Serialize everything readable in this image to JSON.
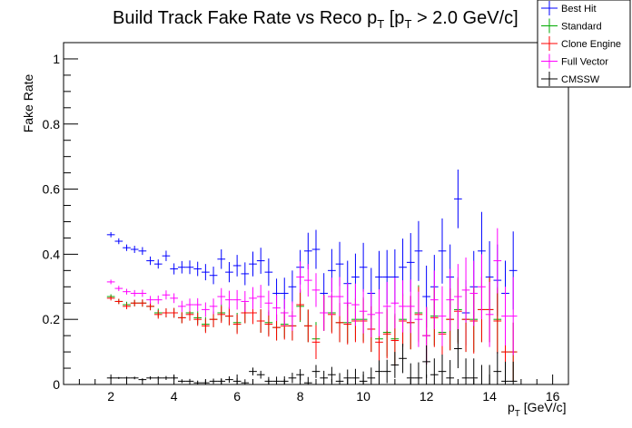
{
  "chart_data": {
    "type": "scatter",
    "title": "Build Track Fake Rate vs Reco p",
    "title_sub": "T",
    "title_rest1": " [p",
    "title_sub2": "T",
    "title_rest2": " > 2.0 GeV/c]",
    "xlabel": "p",
    "xlabel_sub": "T",
    "xlabel_unit": " [GeV/c]",
    "ylabel": "Fake Rate",
    "xlim": [
      0.5,
      16.5
    ],
    "ylim": [
      0,
      1.05
    ],
    "x_ticks": [
      2,
      4,
      6,
      8,
      10,
      12,
      14,
      16
    ],
    "y_ticks": [
      0,
      0.2,
      0.4,
      0.6,
      0.8,
      1
    ],
    "x_tick_labels": [
      "2",
      "4",
      "6",
      "8",
      "10",
      "12",
      "14",
      "16"
    ],
    "y_tick_labels": [
      "0",
      "0.2",
      "0.4",
      "0.6",
      "0.8",
      "1"
    ],
    "bin_width": 0.25,
    "x": [
      2.0,
      2.25,
      2.5,
      2.75,
      3.0,
      3.25,
      3.5,
      3.75,
      4.0,
      4.25,
      4.5,
      4.75,
      5.0,
      5.25,
      5.5,
      5.75,
      6.0,
      6.25,
      6.5,
      6.75,
      7.0,
      7.25,
      7.5,
      7.75,
      8.0,
      8.25,
      8.5,
      8.75,
      9.0,
      9.25,
      9.5,
      9.75,
      10.0,
      10.25,
      10.5,
      10.75,
      11.0,
      11.25,
      11.5,
      11.75,
      12.0,
      12.25,
      12.5,
      12.75,
      13.0,
      13.25,
      13.5,
      13.75,
      14.0,
      14.25,
      14.5,
      14.75
    ],
    "legend_position": "top-right",
    "series": [
      {
        "name": "Best Hit",
        "color": "#0000ff",
        "values": [
          0.46,
          0.44,
          0.42,
          0.415,
          0.41,
          0.38,
          0.37,
          0.395,
          0.355,
          0.36,
          0.36,
          0.355,
          0.345,
          0.335,
          0.385,
          0.345,
          0.365,
          0.34,
          0.37,
          0.38,
          0.345,
          0.28,
          0.28,
          0.3,
          0.36,
          0.41,
          0.415,
          0.28,
          0.35,
          0.37,
          0.31,
          0.33,
          0.36,
          0.28,
          0.33,
          0.33,
          0.33,
          0.36,
          0.375,
          0.41,
          0.27,
          0.3,
          0.41,
          0.33,
          0.57,
          0.22,
          0.3,
          0.41,
          0.33,
          0.32,
          0.28,
          0.35
        ],
        "errors": [
          0.008,
          0.009,
          0.01,
          0.011,
          0.012,
          0.013,
          0.014,
          0.016,
          0.017,
          0.019,
          0.021,
          0.022,
          0.025,
          0.027,
          0.03,
          0.031,
          0.033,
          0.035,
          0.038,
          0.04,
          0.042,
          0.045,
          0.048,
          0.05,
          0.053,
          0.056,
          0.06,
          0.062,
          0.066,
          0.068,
          0.07,
          0.072,
          0.075,
          0.078,
          0.08,
          0.083,
          0.085,
          0.088,
          0.09,
          0.092,
          0.095,
          0.098,
          0.1,
          0.1,
          0.09,
          0.1,
          0.11,
          0.12,
          0.11,
          0.11,
          0.1,
          0.12
        ]
      },
      {
        "name": "Standard",
        "color": "#00aa00",
        "values": [
          0.27,
          0.255,
          0.245,
          0.25,
          0.25,
          0.24,
          0.22,
          0.22,
          0.22,
          0.205,
          0.22,
          0.205,
          0.185,
          0.2,
          0.22,
          0.21,
          0.19,
          0.22,
          0.22,
          0.195,
          0.19,
          0.175,
          0.185,
          0.18,
          0.24,
          0.18,
          0.14,
          0.22,
          0.22,
          0.19,
          0.19,
          0.2,
          0.2,
          0.17,
          0.14,
          0.16,
          0.14,
          0.2,
          0.19,
          0.22,
          0.15,
          0.21,
          0.16,
          0.2,
          0.23,
          0.2,
          0.2,
          0.23,
          0.23,
          0.2,
          0.1,
          0.1
        ],
        "errors": [
          0.007,
          0.008,
          0.009,
          0.01,
          0.011,
          0.012,
          0.013,
          0.014,
          0.015,
          0.017,
          0.019,
          0.02,
          0.022,
          0.024,
          0.026,
          0.028,
          0.03,
          0.032,
          0.034,
          0.036,
          0.038,
          0.04,
          0.042,
          0.045,
          0.048,
          0.05,
          0.052,
          0.055,
          0.058,
          0.06,
          0.062,
          0.065,
          0.068,
          0.07,
          0.072,
          0.075,
          0.078,
          0.08,
          0.082,
          0.085,
          0.088,
          0.09,
          0.092,
          0.095,
          0.1,
          0.1,
          0.1,
          0.1,
          0.1,
          0.1,
          0.09,
          0.09
        ]
      },
      {
        "name": "Clone Engine",
        "color": "#ff0000",
        "values": [
          0.265,
          0.255,
          0.24,
          0.25,
          0.25,
          0.24,
          0.215,
          0.22,
          0.22,
          0.205,
          0.215,
          0.2,
          0.18,
          0.2,
          0.215,
          0.21,
          0.185,
          0.22,
          0.22,
          0.195,
          0.185,
          0.175,
          0.18,
          0.18,
          0.245,
          0.18,
          0.13,
          0.22,
          0.215,
          0.19,
          0.185,
          0.195,
          0.195,
          0.17,
          0.13,
          0.155,
          0.135,
          0.195,
          0.19,
          0.215,
          0.15,
          0.205,
          0.155,
          0.2,
          0.225,
          0.2,
          0.195,
          0.23,
          0.23,
          0.195,
          0.1,
          0.1
        ],
        "errors": [
          0.007,
          0.008,
          0.009,
          0.01,
          0.011,
          0.012,
          0.013,
          0.014,
          0.015,
          0.017,
          0.019,
          0.02,
          0.022,
          0.024,
          0.026,
          0.028,
          0.03,
          0.032,
          0.034,
          0.036,
          0.038,
          0.04,
          0.042,
          0.045,
          0.048,
          0.05,
          0.052,
          0.055,
          0.058,
          0.06,
          0.062,
          0.065,
          0.068,
          0.07,
          0.072,
          0.075,
          0.078,
          0.08,
          0.082,
          0.085,
          0.088,
          0.09,
          0.092,
          0.095,
          0.1,
          0.1,
          0.1,
          0.1,
          0.1,
          0.1,
          0.09,
          0.09
        ]
      },
      {
        "name": "Full Vector",
        "color": "#ff00ff",
        "values": [
          0.315,
          0.295,
          0.285,
          0.28,
          0.28,
          0.26,
          0.26,
          0.275,
          0.265,
          0.24,
          0.245,
          0.245,
          0.23,
          0.24,
          0.27,
          0.26,
          0.26,
          0.255,
          0.265,
          0.27,
          0.25,
          0.235,
          0.22,
          0.21,
          0.33,
          0.32,
          0.29,
          0.22,
          0.27,
          0.27,
          0.25,
          0.245,
          0.225,
          0.215,
          0.22,
          0.24,
          0.25,
          0.24,
          0.24,
          0.2,
          0.15,
          0.26,
          0.21,
          0.26,
          0.27,
          0.29,
          0.28,
          0.3,
          0.215,
          0.38,
          0.21,
          0.21
        ],
        "errors": [
          0.007,
          0.008,
          0.009,
          0.01,
          0.011,
          0.012,
          0.013,
          0.014,
          0.015,
          0.017,
          0.019,
          0.02,
          0.022,
          0.024,
          0.026,
          0.028,
          0.03,
          0.032,
          0.034,
          0.036,
          0.038,
          0.04,
          0.042,
          0.045,
          0.048,
          0.05,
          0.052,
          0.055,
          0.058,
          0.06,
          0.062,
          0.065,
          0.068,
          0.07,
          0.072,
          0.075,
          0.078,
          0.08,
          0.082,
          0.085,
          0.088,
          0.09,
          0.092,
          0.095,
          0.1,
          0.1,
          0.1,
          0.1,
          0.1,
          0.1,
          0.09,
          0.12
        ]
      },
      {
        "name": "CMSSW",
        "color": "#000000",
        "values": [
          0.02,
          0.02,
          0.02,
          0.02,
          0.015,
          0.02,
          0.02,
          0.02,
          0.02,
          0.01,
          0.01,
          0.005,
          0.005,
          0.01,
          0.01,
          0.015,
          0.01,
          0.005,
          0.04,
          0.03,
          0.01,
          0.01,
          0.01,
          0.02,
          0.03,
          0.005,
          0.04,
          0.02,
          0.03,
          0.01,
          0.02,
          0.02,
          0.01,
          0.02,
          0.04,
          0.04,
          0.06,
          0.08,
          0.02,
          0.02,
          0.07,
          0.03,
          0.04,
          0.02,
          0.11,
          0.02,
          0.02,
          0.0,
          0.0,
          0.04,
          0.01,
          0.01
        ],
        "errors": [
          0.003,
          0.003,
          0.004,
          0.004,
          0.004,
          0.005,
          0.005,
          0.006,
          0.006,
          0.006,
          0.007,
          0.007,
          0.008,
          0.008,
          0.009,
          0.01,
          0.01,
          0.011,
          0.012,
          0.012,
          0.013,
          0.014,
          0.015,
          0.016,
          0.017,
          0.018,
          0.02,
          0.022,
          0.024,
          0.025,
          0.026,
          0.028,
          0.03,
          0.032,
          0.034,
          0.036,
          0.04,
          0.045,
          0.045,
          0.048,
          0.05,
          0.05,
          0.052,
          0.055,
          0.06,
          0.06,
          0.06,
          0.06,
          0.06,
          0.06,
          0.06,
          0.06
        ]
      }
    ]
  }
}
